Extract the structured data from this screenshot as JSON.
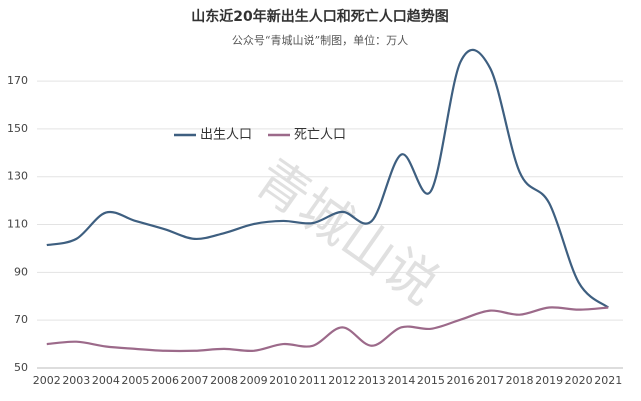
{
  "chart_data": {
    "type": "line",
    "title": "山东近20年新出生人口和死亡人口趋势图",
    "subtitle": "公众号“青城山说”制图，单位：万人",
    "watermark": "青城山说",
    "categories": [
      "2002",
      "2003",
      "2004",
      "2005",
      "2006",
      "2007",
      "2008",
      "2009",
      "2010",
      "2011",
      "2012",
      "2013",
      "2014",
      "2015",
      "2016",
      "2017",
      "2018",
      "2019",
      "2020",
      "2021"
    ],
    "series": [
      {
        "name": "出生人口",
        "color": "#3e5f80",
        "values": [
          101.4,
          104,
          115,
          111.5,
          108,
          104,
          106.4,
          110.2,
          111.5,
          110.6,
          115.3,
          111.5,
          139.3,
          124,
          178,
          175.5,
          132,
          119,
          85.8,
          75.3
        ]
      },
      {
        "name": "死亡人口",
        "color": "#9c6a8a",
        "values": [
          60,
          61,
          59,
          58,
          57.2,
          57.2,
          58,
          57.2,
          60,
          59.3,
          67,
          59.3,
          67,
          66.4,
          70.2,
          74,
          72.3,
          75.3,
          74.4,
          75.3
        ]
      }
    ],
    "ylim": [
      50,
      183
    ],
    "yticks": [
      50,
      70,
      90,
      110,
      130,
      150,
      170
    ],
    "grid": true,
    "legend": "top-left"
  }
}
